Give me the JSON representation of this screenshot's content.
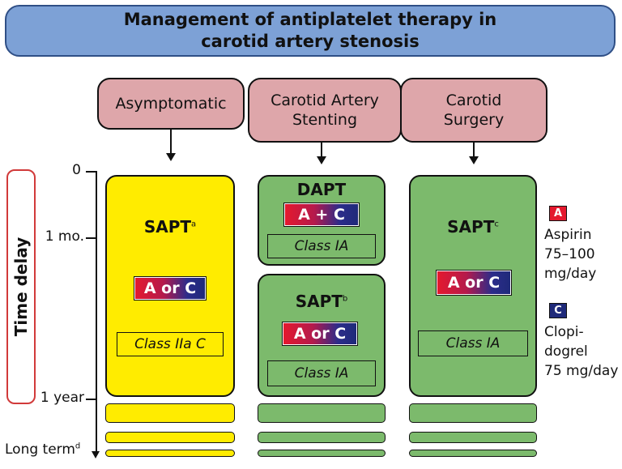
{
  "title": {
    "line1": "Management of antiplatelet therapy in",
    "line2": "carotid artery stenosis"
  },
  "categories": [
    {
      "lines": [
        "Asymptomatic"
      ]
    },
    {
      "lines": [
        "Carotid Artery",
        "Stenting"
      ]
    },
    {
      "lines": [
        "Carotid",
        "Surgery"
      ]
    }
  ],
  "axis": {
    "title": "Time delay",
    "ticks": [
      "0",
      "1 mo.",
      "1 year"
    ],
    "long_term": "Long term",
    "long_term_sup": "d"
  },
  "columns": {
    "asymptomatic": {
      "therapy": "SAPT",
      "sup": "a",
      "drug": "A or C",
      "class": "Class IIa C"
    },
    "stenting": {
      "first": {
        "therapy": "DAPT",
        "drug": "A + C",
        "class": "Class IA"
      },
      "second": {
        "therapy": "SAPT",
        "sup": "b",
        "drug": "A or C",
        "class": "Class IA"
      }
    },
    "surgery": {
      "therapy": "SAPT",
      "sup": "c",
      "drug": "A or C",
      "class": "Class IA"
    }
  },
  "legend": {
    "a": {
      "key": "A",
      "lines": [
        "Aspirin",
        "75–100",
        "mg/day"
      ]
    },
    "c": {
      "key": "C",
      "lines": [
        "Clopi-",
        "dogrel",
        "75 mg/day"
      ]
    }
  },
  "colors": {
    "banner": "#7da1d6",
    "pill": "#dea6aa",
    "yellow": "#ffec00",
    "green": "#7cba6c",
    "aspirin": "#e4192e",
    "clopidogrel": "#1f2a7a",
    "time_frame": "#d13a3a"
  }
}
